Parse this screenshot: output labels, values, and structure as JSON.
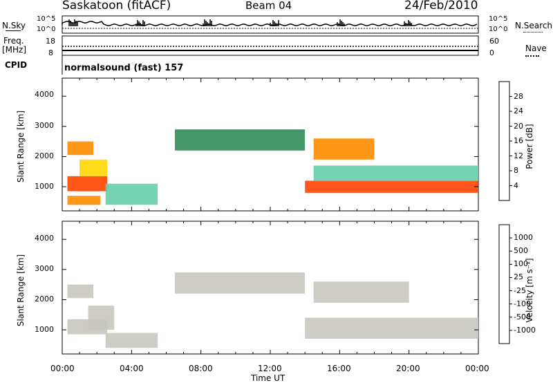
{
  "header": {
    "site": "Saskatoon (fitACF)",
    "beam": "Beam 04",
    "date": "24/Feb/2010"
  },
  "top_panels": {
    "nsky_label": "N.Sky",
    "nsky_ticks": [
      "10^5",
      "10^0"
    ],
    "nsearch_label": "N.Search",
    "nsearch_ticks": [
      "10^5",
      "10^0"
    ],
    "freq_label": "Freq.",
    "freq_unit": "[MHz]",
    "freq_ticks": [
      "18",
      "8"
    ],
    "nave_label": "Nave",
    "nave_ticks": [
      "60",
      "0"
    ],
    "cpid_label": "CPID",
    "cpid_value": "normalsound (fast) 157"
  },
  "colors": {
    "power_scale": [
      "#0000ff",
      "#234ea0",
      "#2e8b57",
      "#66cdaa",
      "#c8e63c",
      "#ffd700",
      "#ff8c00",
      "#ff4500",
      "#ff0000"
    ],
    "velocity_scale": [
      "#1a3aa8",
      "#2e6b8f",
      "#2e8b57",
      "#3cb44b",
      "#c8c8c0",
      "#c8c8c0",
      "#ff8c00",
      "#ff6010",
      "#ff0000"
    ]
  },
  "chart_data": [
    {
      "type": "heatmap",
      "name": "power",
      "xlabel": "",
      "ylabel": "Slant Range [km]",
      "xlim": [
        "00:00",
        "24:00"
      ],
      "ylim": [
        200,
        4600
      ],
      "yticks": [
        "1000",
        "2000",
        "3000",
        "4000"
      ],
      "colorbar": {
        "label": "Power [dB]",
        "ticks": [
          "4",
          "8",
          "12",
          "16",
          "20",
          "24",
          "28"
        ],
        "range": [
          0,
          32
        ]
      },
      "regions": [
        {
          "t0": 0.3,
          "t1": 2.6,
          "r0": 850,
          "r1": 1350,
          "level": 26
        },
        {
          "t0": 0.3,
          "t1": 2.2,
          "r0": 400,
          "r1": 700,
          "level": 22
        },
        {
          "t0": 0.3,
          "t1": 1.8,
          "r0": 2050,
          "r1": 2500,
          "level": 24
        },
        {
          "t0": 1.0,
          "t1": 2.6,
          "r0": 1350,
          "r1": 1900,
          "level": 18
        },
        {
          "t0": 2.5,
          "t1": 5.5,
          "r0": 400,
          "r1": 1100,
          "level": 12
        },
        {
          "t0": 6.5,
          "t1": 14.0,
          "r0": 2200,
          "r1": 2900,
          "level": 10
        },
        {
          "t0": 14.0,
          "t1": 24.0,
          "r0": 800,
          "r1": 1200,
          "level": 25
        },
        {
          "t0": 14.5,
          "t1": 24.0,
          "r0": 1200,
          "r1": 1700,
          "level": 14
        },
        {
          "t0": 14.5,
          "t1": 18.0,
          "r0": 1900,
          "r1": 2600,
          "level": 22
        }
      ]
    },
    {
      "type": "heatmap",
      "name": "velocity",
      "xlabel": "Time UT",
      "ylabel": "Slant Range [km]",
      "xlim": [
        "00:00",
        "24:00"
      ],
      "ylim": [
        200,
        4600
      ],
      "xticks": [
        "00:00",
        "04:00",
        "08:00",
        "12:00",
        "16:00",
        "20:00",
        "00:00"
      ],
      "yticks": [
        "1000",
        "2000",
        "3000",
        "4000"
      ],
      "colorbar": {
        "label": "Velocity [m s⁻¹]",
        "ticks": [
          "1000",
          "500",
          "100",
          "25",
          "-25",
          "-100",
          "-500",
          "-1000"
        ],
        "range": [
          -1200,
          1200
        ]
      },
      "regions": [
        {
          "t0": 0.3,
          "t1": 2.6,
          "r0": 850,
          "r1": 1350,
          "level": 0
        },
        {
          "t0": 0.3,
          "t1": 1.8,
          "r0": 2050,
          "r1": 2500,
          "level": 120
        },
        {
          "t0": 1.5,
          "t1": 3.0,
          "r0": 1000,
          "r1": 1800,
          "level": -200
        },
        {
          "t0": 2.5,
          "t1": 5.5,
          "r0": 400,
          "r1": 900,
          "level": -200
        },
        {
          "t0": 6.5,
          "t1": 14.0,
          "r0": 2200,
          "r1": 2900,
          "level": 0
        },
        {
          "t0": 14.0,
          "t1": 24.0,
          "r0": 700,
          "r1": 1400,
          "level": 0
        },
        {
          "t0": 14.5,
          "t1": 20.0,
          "r0": 1900,
          "r1": 2600,
          "level": -200
        }
      ]
    }
  ]
}
